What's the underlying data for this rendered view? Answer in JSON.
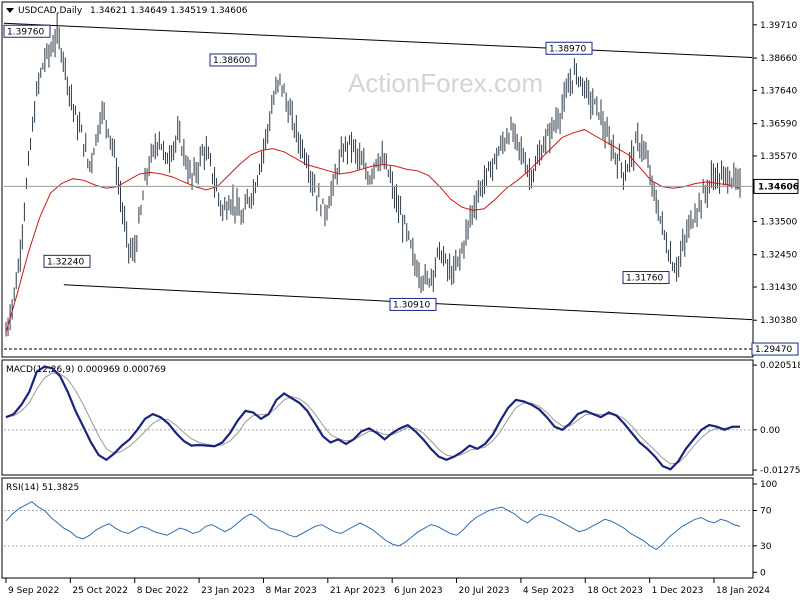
{
  "header": {
    "symbol": "USDCAD,Daily",
    "ohlc": "1.34621 1.34649 1.34519 1.34606"
  },
  "watermark": "ActionForex.com",
  "chart_data": [
    {
      "type": "bar",
      "name": "price",
      "ylim": [
        1.2925,
        1.404
      ],
      "yticks": [
        1.3971,
        1.3866,
        1.3764,
        1.3659,
        1.3557,
        1.335,
        1.3245,
        1.3143,
        1.3038
      ],
      "ytick_labels": [
        "1.39710",
        "1.38660",
        "1.37640",
        "1.36590",
        "1.35570",
        "1.33500",
        "1.32450",
        "1.31430",
        "1.30380"
      ],
      "last_price": 1.34606,
      "last_price_label": "1.34606",
      "xlabels": [
        "9 Sep 2022",
        "25 Oct 2022",
        "8 Dec 2022",
        "23 Jan 2023",
        "8 Mar 2023",
        "21 Apr 2023",
        "6 Jun 2023",
        "20 Jul 2023",
        "4 Sep 2023",
        "18 Oct 2023",
        "1 Dec 2023",
        "18 Jan 2024"
      ],
      "annotations": [
        {
          "label": "1.39760",
          "value": 1.3976
        },
        {
          "label": "1.38600",
          "value": 1.386
        },
        {
          "label": "1.38970",
          "value": 1.3897
        },
        {
          "label": "1.32240",
          "value": 1.3224
        },
        {
          "label": "1.30910",
          "value": 1.3091
        },
        {
          "label": "1.31760",
          "value": 1.3176
        },
        {
          "label": "1.29470",
          "value": 1.2947
        }
      ],
      "trendlines": [
        {
          "name": "upper-channel",
          "from": [
            0,
            1.3976
          ],
          "to": [
            1,
            1.3868
          ]
        },
        {
          "name": "lower-channel",
          "from": [
            0.08,
            1.315
          ],
          "to": [
            1,
            1.304
          ]
        }
      ],
      "support_line": 1.2947,
      "series_close": [
        1.3,
        1.309,
        1.321,
        1.342,
        1.362,
        1.378,
        1.386,
        1.389,
        1.394,
        1.387,
        1.376,
        1.367,
        1.362,
        1.352,
        1.36,
        1.37,
        1.365,
        1.356,
        1.342,
        1.328,
        1.324,
        1.336,
        1.35,
        1.356,
        1.362,
        1.354,
        1.358,
        1.362,
        1.356,
        1.348,
        1.352,
        1.358,
        1.353,
        1.345,
        1.338,
        1.342,
        1.34,
        1.335,
        1.342,
        1.346,
        1.355,
        1.364,
        1.374,
        1.38,
        1.372,
        1.366,
        1.36,
        1.356,
        1.348,
        1.342,
        1.338,
        1.344,
        1.352,
        1.358,
        1.36,
        1.356,
        1.352,
        1.349,
        1.355,
        1.354,
        1.35,
        1.342,
        1.336,
        1.33,
        1.322,
        1.318,
        1.316,
        1.32,
        1.326,
        1.321,
        1.318,
        1.323,
        1.33,
        1.338,
        1.344,
        1.348,
        1.352,
        1.356,
        1.36,
        1.364,
        1.36,
        1.356,
        1.35,
        1.352,
        1.358,
        1.362,
        1.366,
        1.37,
        1.376,
        1.382,
        1.38,
        1.376,
        1.372,
        1.37,
        1.362,
        1.358,
        1.354,
        1.35,
        1.356,
        1.36,
        1.358,
        1.348,
        1.34,
        1.332,
        1.324,
        1.32,
        1.326,
        1.333,
        1.338,
        1.342,
        1.346,
        1.35,
        1.348,
        1.35,
        1.348,
        1.346
      ],
      "series_ma": [
        1.3,
        1.312,
        1.325,
        1.336,
        1.344,
        1.347,
        1.3485,
        1.348,
        1.3465,
        1.3455,
        1.346,
        1.348,
        1.35,
        1.3505,
        1.35,
        1.349,
        1.3475,
        1.346,
        1.345,
        1.346,
        1.3495,
        1.353,
        1.356,
        1.3575,
        1.358,
        1.357,
        1.355,
        1.353,
        1.352,
        1.351,
        1.35,
        1.3505,
        1.3515,
        1.3525,
        1.353,
        1.3525,
        1.3515,
        1.351,
        1.3495,
        1.346,
        1.342,
        1.3395,
        1.3385,
        1.339,
        1.342,
        1.3455,
        1.348,
        1.351,
        1.3545,
        1.358,
        1.3615,
        1.363,
        1.364,
        1.362,
        1.36,
        1.358,
        1.356,
        1.352,
        1.348,
        1.346,
        1.3455,
        1.346,
        1.347,
        1.3475,
        1.347,
        1.3465,
        1.3455
      ]
    },
    {
      "type": "line",
      "name": "MACD",
      "title": "MACD(12,26,9) 0.000969 0.000769",
      "ylim": [
        -0.014,
        0.0215
      ],
      "yticks": [
        0.020518,
        0.0,
        -0.012755
      ],
      "ytick_labels": [
        "0.020518",
        "0.00",
        "-0.012755"
      ],
      "zero_label": "0.00",
      "series_macd": [
        0.004,
        0.005,
        0.008,
        0.012,
        0.0185,
        0.02,
        0.0195,
        0.017,
        0.012,
        0.006,
        0.001,
        -0.004,
        -0.008,
        -0.0095,
        -0.0075,
        -0.005,
        -0.003,
        0.0,
        0.0035,
        0.005,
        0.004,
        0.002,
        -0.001,
        -0.0035,
        -0.005,
        -0.0048,
        -0.005,
        -0.0052,
        -0.004,
        -0.001,
        0.003,
        0.006,
        0.0055,
        0.0035,
        0.005,
        0.0095,
        0.0115,
        0.01,
        0.0085,
        0.006,
        0.002,
        -0.002,
        -0.004,
        -0.003,
        -0.0045,
        -0.003,
        -0.0005,
        0.0005,
        -0.001,
        -0.003,
        -0.001,
        0.0005,
        0.0015,
        -0.0005,
        -0.003,
        -0.006,
        -0.0085,
        -0.0095,
        -0.0085,
        -0.007,
        -0.005,
        -0.006,
        -0.0045,
        -0.0015,
        0.003,
        0.007,
        0.0095,
        0.009,
        0.008,
        0.0065,
        0.004,
        0.001,
        0.0,
        0.002,
        0.005,
        0.006,
        0.005,
        0.004,
        0.0055,
        0.0045,
        0.002,
        -0.001,
        -0.004,
        -0.006,
        -0.0085,
        -0.0115,
        -0.0125,
        -0.01,
        -0.006,
        -0.003,
        0.0,
        0.0015,
        0.001,
        0.0,
        0.001,
        0.001
      ],
      "series_signal": [
        0.004,
        0.0045,
        0.006,
        0.0085,
        0.013,
        0.0165,
        0.018,
        0.0178,
        0.016,
        0.0125,
        0.008,
        0.003,
        -0.002,
        -0.006,
        -0.0075,
        -0.0068,
        -0.0052,
        -0.003,
        -0.0005,
        0.002,
        0.0035,
        0.0032,
        0.0015,
        -0.0008,
        -0.0028,
        -0.004,
        -0.0046,
        -0.005,
        -0.0048,
        -0.0035,
        -0.001,
        0.0025,
        0.0045,
        0.0048,
        0.005,
        0.007,
        0.0095,
        0.0105,
        0.0098,
        0.008,
        0.005,
        0.0015,
        -0.0015,
        -0.0028,
        -0.0035,
        -0.0032,
        -0.0018,
        -0.0005,
        -0.0005,
        -0.0015,
        -0.0015,
        -0.0005,
        0.0008,
        0.0005,
        -0.001,
        -0.0035,
        -0.0062,
        -0.008,
        -0.0085,
        -0.0078,
        -0.0065,
        -0.006,
        -0.0055,
        -0.0035,
        -0.0005,
        0.0035,
        0.007,
        0.0085,
        0.0085,
        0.0075,
        0.0055,
        0.003,
        0.0012,
        0.0012,
        0.003,
        0.0048,
        0.0052,
        0.0048,
        0.005,
        0.0048,
        0.0035,
        0.0012,
        -0.0018,
        -0.0042,
        -0.0065,
        -0.009,
        -0.0108,
        -0.0105,
        -0.0082,
        -0.0052,
        -0.0025,
        -0.0005,
        0.0005,
        0.0005,
        0.0007,
        0.0008
      ]
    },
    {
      "type": "line",
      "name": "RSI",
      "title": "RSI(14) 51.3825",
      "ylim": [
        0,
        100
      ],
      "yticks": [
        100,
        70,
        30,
        0
      ],
      "ytick_labels": [
        "100",
        "70",
        "30",
        "0"
      ],
      "series": [
        58,
        66,
        72,
        76,
        80,
        74,
        70,
        62,
        56,
        50,
        46,
        40,
        38,
        42,
        48,
        52,
        55,
        50,
        46,
        44,
        48,
        52,
        50,
        46,
        44,
        42,
        46,
        50,
        48,
        44,
        46,
        52,
        54,
        50,
        46,
        50,
        56,
        62,
        66,
        62,
        56,
        50,
        48,
        46,
        42,
        40,
        44,
        48,
        52,
        54,
        50,
        46,
        44,
        48,
        52,
        56,
        52,
        48,
        42,
        36,
        32,
        30,
        34,
        40,
        46,
        50,
        54,
        52,
        48,
        44,
        42,
        48,
        56,
        62,
        66,
        70,
        72,
        74,
        70,
        66,
        60,
        56,
        62,
        66,
        64,
        62,
        58,
        54,
        50,
        46,
        48,
        52,
        56,
        60,
        58,
        54,
        50,
        44,
        40,
        36,
        30,
        26,
        32,
        40,
        46,
        52,
        56,
        60,
        62,
        58,
        56,
        60,
        58,
        54,
        52
      ]
    }
  ]
}
